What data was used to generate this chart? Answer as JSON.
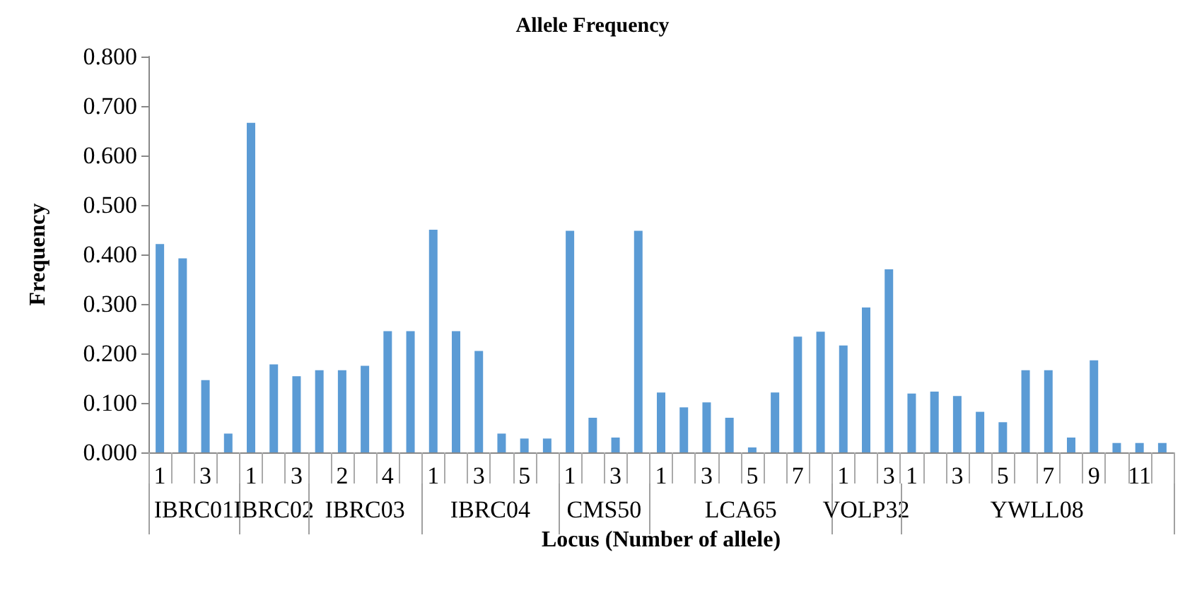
{
  "chart_data": {
    "type": "bar",
    "title": "Allele Frequency",
    "xlabel": "Locus (Number of allele)",
    "ylabel": "Frequency",
    "categories": [
      "1",
      null,
      "3",
      null,
      "1",
      null,
      "3",
      null,
      "2",
      null,
      "4",
      null,
      "1",
      null,
      "3",
      null,
      "5",
      null,
      "1",
      null,
      "3",
      null,
      "1",
      null,
      "3",
      null,
      "5",
      null,
      "7",
      null,
      "1",
      null,
      "3",
      "1",
      null,
      "3",
      null,
      "5",
      null,
      "7",
      null,
      "9",
      null,
      "11",
      null
    ],
    "annotations": [
      "IBRC01",
      "IBRC02",
      "IBRC03",
      "IBRC04",
      "CMS50",
      "LCA65",
      "VOLP32",
      "YWLL08"
    ],
    "series": [
      {
        "color": "#5b9bd5",
        "values": [
          0.421,
          0.392,
          0.146,
          0.038,
          0.666,
          0.178,
          0.154,
          0.166,
          0.166,
          0.175,
          0.245,
          0.245,
          0.45,
          0.245,
          0.205,
          0.038,
          0.028,
          0.028,
          0.448,
          0.07,
          0.03,
          0.448,
          0.121,
          0.091,
          0.101,
          0.07,
          0.01,
          0.121,
          0.234,
          0.244,
          0.216,
          0.293,
          0.37,
          0.119,
          0.123,
          0.114,
          0.082,
          0.061,
          0.166,
          0.166,
          0.03,
          0.186,
          0.019,
          0.019,
          0.019
        ]
      }
    ],
    "ylim": [
      0,
      0.8
    ],
    "yticks": [
      {
        "value": 0,
        "label": "0.000"
      },
      {
        "value": 0.1,
        "label": "0.100"
      },
      {
        "value": 0.2,
        "label": "0.200"
      },
      {
        "value": 0.3,
        "label": "0.300"
      },
      {
        "value": 0.4,
        "label": "0.400"
      },
      {
        "value": 0.5,
        "label": "0.500"
      },
      {
        "value": 0.6,
        "label": "0.600"
      },
      {
        "value": 0.7,
        "label": "0.700"
      },
      {
        "value": 0.8,
        "label": "0.800"
      }
    ],
    "grid": false
  }
}
